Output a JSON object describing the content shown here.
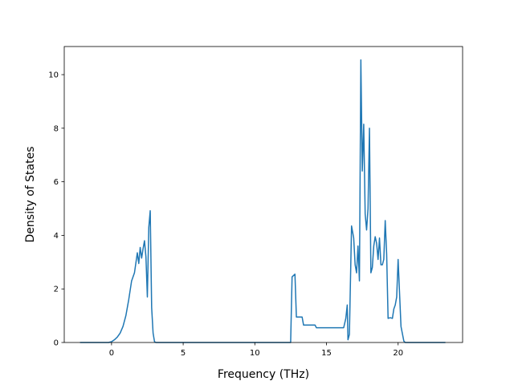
{
  "chart_data": {
    "type": "line",
    "title": "",
    "xlabel": "Frequency (THz)",
    "ylabel": "Density of States",
    "xlim": [
      -3.3,
      24.5
    ],
    "ylim": [
      0,
      11.05
    ],
    "xticks": [
      0,
      5,
      10,
      15,
      20
    ],
    "yticks": [
      0,
      2,
      4,
      6,
      8,
      10
    ],
    "grid": false,
    "line_color": "#1f77b4",
    "series": [
      {
        "x": [
          -2.2,
          -1.0,
          -0.2,
          0.0,
          0.2,
          0.4,
          0.6,
          0.8,
          1.0,
          1.2,
          1.4,
          1.6,
          1.8,
          1.9,
          2.0,
          2.1,
          2.2,
          2.3,
          2.4,
          2.5,
          2.6,
          2.7,
          2.8,
          2.9,
          3.0,
          3.1,
          3.2,
          3.3,
          3.5,
          5.0,
          10.0,
          12.5,
          12.6,
          12.8,
          12.9,
          13.0,
          13.3,
          13.4,
          14.2,
          14.3,
          16.2,
          16.35,
          16.45,
          16.5,
          16.6,
          16.75,
          16.9,
          17.0,
          17.1,
          17.2,
          17.3,
          17.4,
          17.5,
          17.6,
          17.7,
          17.8,
          17.9,
          18.0,
          18.1,
          18.2,
          18.3,
          18.4,
          18.5,
          18.6,
          18.7,
          18.8,
          18.9,
          19.0,
          19.1,
          19.2,
          19.3,
          19.4,
          19.5,
          19.6,
          19.7,
          19.8,
          19.9,
          20.0,
          20.2,
          20.4,
          20.5,
          20.6,
          20.7,
          20.8,
          20.9,
          21.0,
          21.1,
          21.2,
          21.3,
          22.0,
          23.3
        ],
        "y": [
          0,
          0,
          0,
          0.03,
          0.1,
          0.2,
          0.35,
          0.6,
          1.0,
          1.6,
          2.3,
          2.6,
          3.35,
          2.95,
          3.55,
          3.15,
          3.5,
          3.8,
          3.2,
          1.7,
          4.3,
          4.92,
          1.3,
          0.35,
          0.03,
          0,
          0,
          0,
          0,
          0,
          0,
          0,
          2.45,
          2.55,
          0.95,
          0.95,
          0.95,
          0.65,
          0.65,
          0.55,
          0.55,
          0.9,
          1.4,
          0.1,
          0.3,
          4.35,
          3.9,
          2.9,
          2.6,
          3.6,
          2.3,
          10.55,
          6.4,
          8.15,
          4.8,
          4.2,
          5.0,
          8.0,
          2.6,
          2.8,
          3.6,
          3.95,
          3.7,
          3.1,
          3.9,
          2.9,
          2.9,
          3.1,
          4.55,
          3.3,
          0.9,
          0.92,
          0.92,
          0.9,
          1.25,
          1.4,
          1.7,
          3.1,
          0.6,
          0.05,
          0,
          0,
          0,
          0,
          0,
          0,
          0,
          0,
          0,
          0,
          0
        ]
      }
    ]
  }
}
